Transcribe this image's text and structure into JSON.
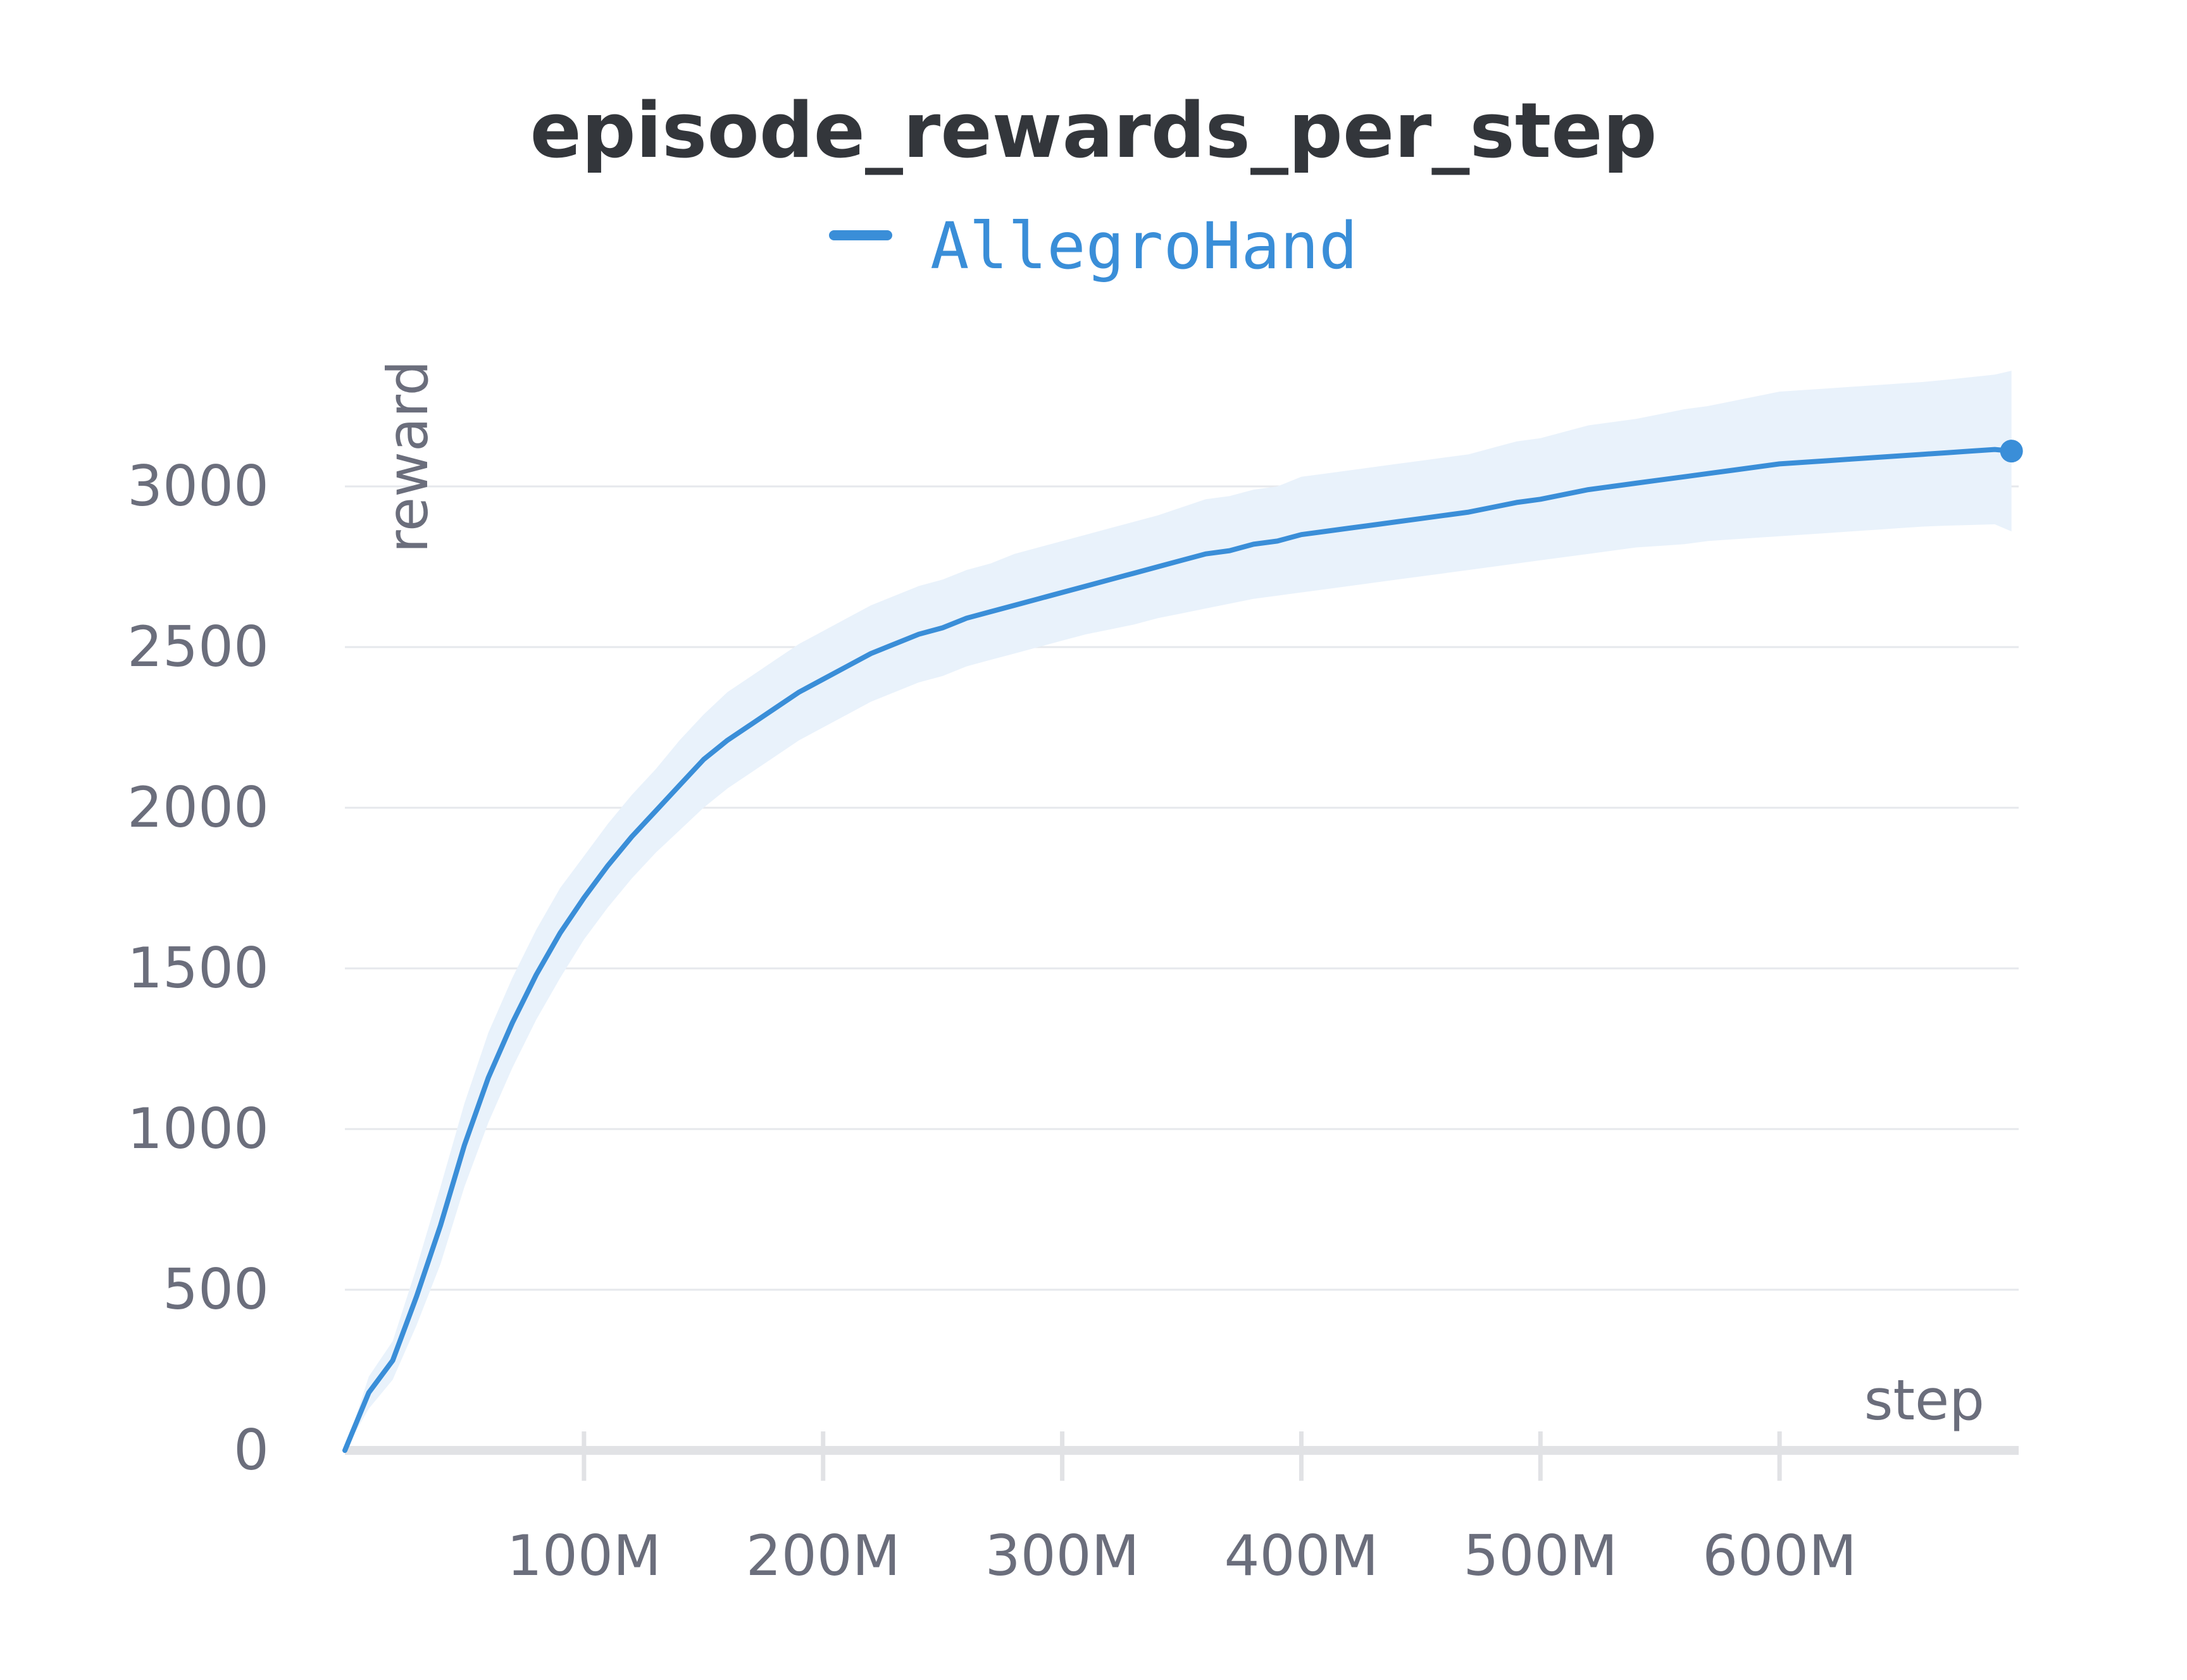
{
  "colors": {
    "series": "#3a8ed8",
    "band": "#e9f2fb",
    "grid": "#e6e8ec",
    "axis": "#e1e2e5",
    "text": "#6b6e7c",
    "title": "#33363b"
  },
  "chart_data": {
    "type": "line",
    "title": "episode_rewards_per_step",
    "xlabel": "step",
    "ylabel": "reward",
    "xlim": [
      0,
      700000000
    ],
    "ylim": [
      0,
      3500
    ],
    "grid": true,
    "legend_position": "top-center",
    "x_ticks": [
      {
        "value": 100000000,
        "label": "100M"
      },
      {
        "value": 200000000,
        "label": "200M"
      },
      {
        "value": 300000000,
        "label": "300M"
      },
      {
        "value": 400000000,
        "label": "400M"
      },
      {
        "value": 500000000,
        "label": "500M"
      },
      {
        "value": 600000000,
        "label": "600M"
      }
    ],
    "y_ticks": [
      {
        "value": 0,
        "label": "0"
      },
      {
        "value": 500,
        "label": "500"
      },
      {
        "value": 1000,
        "label": "1000"
      },
      {
        "value": 1500,
        "label": "1500"
      },
      {
        "value": 2000,
        "label": "2000"
      },
      {
        "value": 2500,
        "label": "2500"
      },
      {
        "value": 3000,
        "label": "3000"
      }
    ],
    "series": [
      {
        "name": "AllegroHand",
        "x": [
          0,
          10000000,
          20000000,
          30000000,
          40000000,
          50000000,
          60000000,
          70000000,
          80000000,
          90000000,
          100000000,
          110000000,
          120000000,
          130000000,
          140000000,
          150000000,
          160000000,
          170000000,
          180000000,
          190000000,
          200000000,
          210000000,
          220000000,
          230000000,
          240000000,
          250000000,
          260000000,
          270000000,
          280000000,
          290000000,
          300000000,
          310000000,
          320000000,
          330000000,
          340000000,
          350000000,
          360000000,
          370000000,
          380000000,
          390000000,
          400000000,
          410000000,
          420000000,
          430000000,
          440000000,
          450000000,
          460000000,
          470000000,
          480000000,
          490000000,
          500000000,
          510000000,
          520000000,
          530000000,
          540000000,
          550000000,
          560000000,
          570000000,
          580000000,
          590000000,
          600000000,
          610000000,
          620000000,
          630000000,
          640000000,
          650000000,
          660000000,
          670000000,
          680000000,
          690000000,
          697000000
        ],
        "y": [
          0,
          180,
          280,
          480,
          700,
          950,
          1160,
          1330,
          1480,
          1610,
          1720,
          1820,
          1910,
          1990,
          2070,
          2150,
          2210,
          2260,
          2310,
          2360,
          2400,
          2440,
          2480,
          2510,
          2540,
          2560,
          2590,
          2610,
          2630,
          2650,
          2670,
          2690,
          2710,
          2730,
          2750,
          2770,
          2790,
          2800,
          2820,
          2830,
          2850,
          2860,
          2870,
          2880,
          2890,
          2900,
          2910,
          2920,
          2935,
          2950,
          2960,
          2975,
          2990,
          3000,
          3010,
          3020,
          3030,
          3040,
          3050,
          3060,
          3070,
          3075,
          3080,
          3085,
          3090,
          3095,
          3100,
          3105,
          3110,
          3115,
          3110
        ],
        "lower": [
          0,
          130,
          220,
          390,
          580,
          820,
          1020,
          1190,
          1340,
          1470,
          1590,
          1690,
          1780,
          1860,
          1930,
          2000,
          2060,
          2110,
          2160,
          2210,
          2250,
          2290,
          2330,
          2360,
          2390,
          2410,
          2440,
          2460,
          2480,
          2500,
          2520,
          2540,
          2555,
          2570,
          2590,
          2605,
          2620,
          2635,
          2650,
          2660,
          2670,
          2680,
          2690,
          2700,
          2710,
          2720,
          2730,
          2740,
          2750,
          2760,
          2770,
          2780,
          2790,
          2800,
          2810,
          2815,
          2820,
          2830,
          2835,
          2840,
          2845,
          2850,
          2855,
          2860,
          2865,
          2870,
          2875,
          2878,
          2880,
          2882,
          2860
        ],
        "upper": [
          0,
          230,
          340,
          570,
          820,
          1080,
          1300,
          1470,
          1620,
          1750,
          1850,
          1950,
          2040,
          2120,
          2210,
          2290,
          2360,
          2410,
          2460,
          2510,
          2550,
          2590,
          2630,
          2660,
          2690,
          2710,
          2740,
          2760,
          2790,
          2810,
          2830,
          2850,
          2870,
          2890,
          2910,
          2935,
          2960,
          2970,
          2990,
          3000,
          3030,
          3040,
          3050,
          3060,
          3070,
          3080,
          3090,
          3100,
          3120,
          3140,
          3150,
          3170,
          3190,
          3200,
          3210,
          3225,
          3240,
          3250,
          3265,
          3280,
          3295,
          3300,
          3305,
          3310,
          3315,
          3320,
          3325,
          3332,
          3340,
          3348,
          3360
        ]
      }
    ]
  }
}
